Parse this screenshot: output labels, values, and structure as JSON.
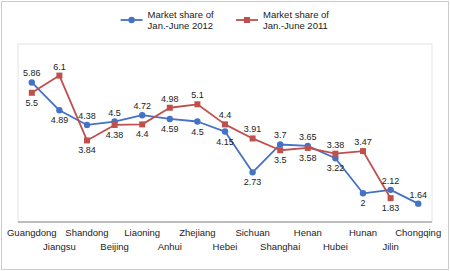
{
  "chart_data": {
    "type": "line",
    "categories": [
      "Guangdong",
      "Jiangsu",
      "Shandong",
      "Beijing",
      "Liaoning",
      "Anhui",
      "Zhejiang",
      "Hebei",
      "Sichuan",
      "Shanghai",
      "Henan",
      "Hubei",
      "Hunan",
      "Jilin",
      "Chongqing"
    ],
    "series": [
      {
        "name": "Market share of\nJan.-June 2012",
        "color": "#4472c4",
        "marker": "circle",
        "values": [
          5.86,
          4.89,
          4.38,
          4.5,
          4.72,
          4.59,
          4.5,
          4.15,
          2.73,
          3.7,
          3.65,
          3.22,
          2.0,
          2.12,
          1.64
        ]
      },
      {
        "name": "Market share of\nJan.-June 2011",
        "color": "#c0504d",
        "marker": "square",
        "values": [
          5.5,
          6.1,
          3.84,
          4.38,
          4.4,
          4.98,
          5.1,
          4.4,
          3.91,
          3.5,
          3.58,
          3.38,
          3.47,
          1.83,
          null
        ]
      }
    ],
    "ylim": [
      1.0,
      7.2
    ],
    "grid": false,
    "legend": "top",
    "data_labels": true,
    "tick_labels": "x"
  }
}
